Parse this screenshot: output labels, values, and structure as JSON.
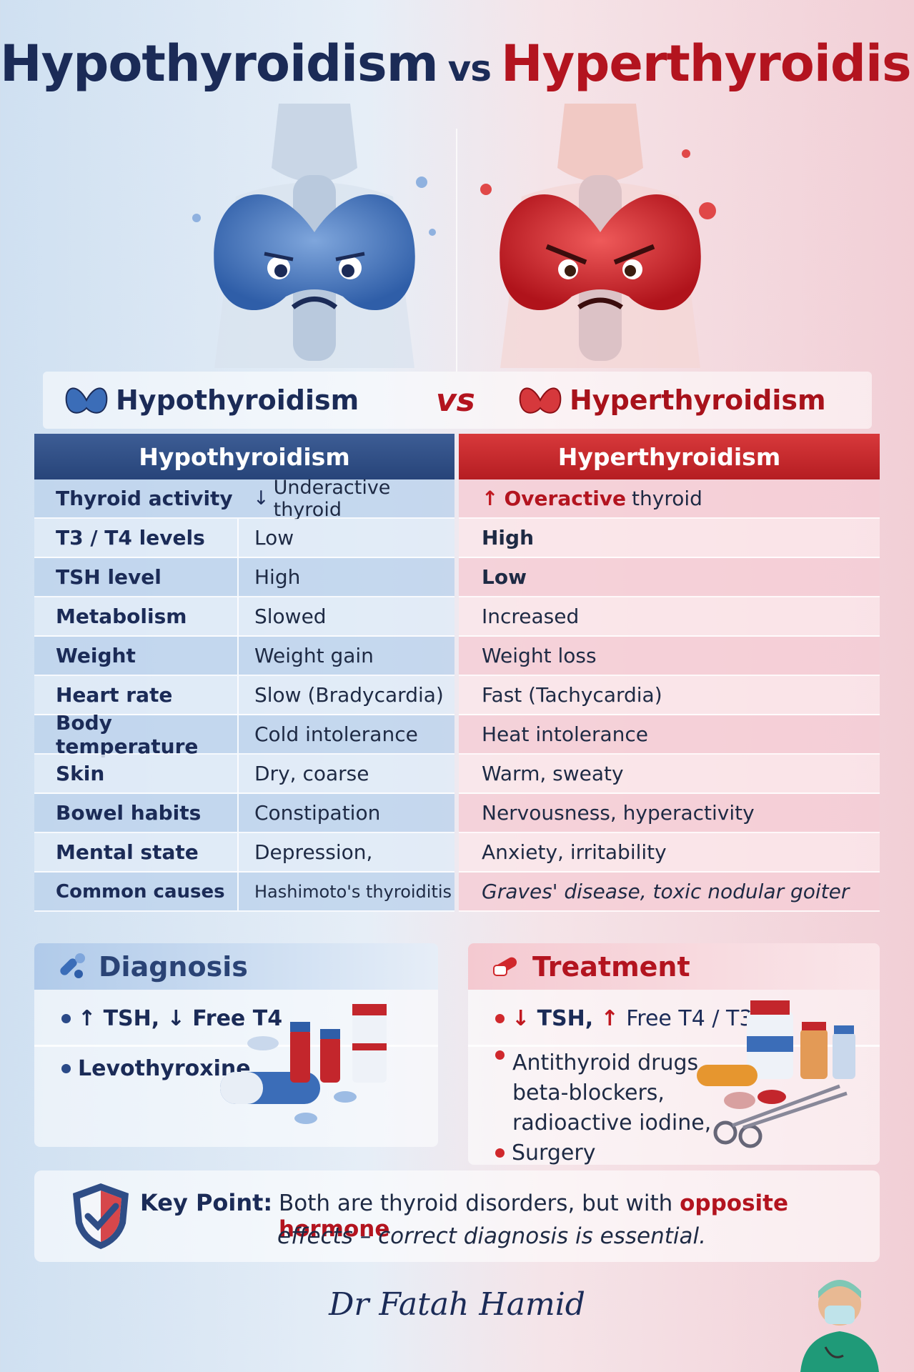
{
  "title": {
    "left": "Hypothyroidism",
    "vs": "vs",
    "right": "Hyperthyroidism"
  },
  "banner": {
    "left": "Hypothyroidism",
    "vs": "vs",
    "right": "Hyperthyroidism"
  },
  "table": {
    "headers": [
      "Hypothyroidism",
      "Hyperthyroidism"
    ],
    "rows": [
      {
        "label": "Thyroid activity",
        "hypo": "Underactive thyroid",
        "hyper_a": "Overactive",
        "hyper_b": "thyroid"
      },
      {
        "label": "T3 / T4 levels",
        "hypo": "Low",
        "hyper": "High"
      },
      {
        "label": "TSH level",
        "hypo": "High",
        "hyper": "Low"
      },
      {
        "label": "Metabolism",
        "hypo": "Slowed",
        "hyper": "Increased"
      },
      {
        "label": "Weight",
        "hypo": "Weight gain",
        "hyper": "Weight loss"
      },
      {
        "label": "Heart rate",
        "hypo": "Slow (Bradycardia)",
        "hyper": "Fast (Tachycardia)"
      },
      {
        "label": "Body temperature",
        "hypo": "Cold intolerance",
        "hyper": "Heat intolerance"
      },
      {
        "label": "Skin",
        "hypo": "Dry, coarse",
        "hyper": "Warm, sweaty"
      },
      {
        "label": "Bowel habits",
        "hypo": "Constipation",
        "hyper": "Nervousness, hyperactivity"
      },
      {
        "label": "Mental state",
        "hypo": "Depression,",
        "hyper": "Anxiety, irritability"
      },
      {
        "label": "Common causes",
        "hypo": "Hashimoto's thyroiditis",
        "hyper": "Graves' disease, toxic nodular goiter"
      }
    ]
  },
  "diagnosis": {
    "title": "Diagnosis",
    "line1_a": "TSH,",
    "line1_b": "Free T4",
    "line2": "Levothyroxine"
  },
  "treatment": {
    "title": "Treatment",
    "line1_a": "TSH,",
    "line1_b": "Free T4 / T3",
    "list": [
      "Antithyroid drugs,",
      "beta-blockers,",
      "radioactive iodine,"
    ],
    "last": "Surgery"
  },
  "key_point": {
    "label": "Key Point:",
    "text_a": "Both are thyroid disorders, but with",
    "text_hl": "opposite hormone",
    "text_b": "effects – correct diagnosis is essential."
  },
  "signature": "Dr Fatah Hamid",
  "colors": {
    "navy": "#1b2b57",
    "red": "#b3141f",
    "blue_header": "#2f4d86",
    "red_header": "#c42a2e"
  },
  "icons": [
    "thyroid-butterfly-icon",
    "pills-icon",
    "medicine-icon",
    "shield-check-icon",
    "doctor-avatar-icon"
  ]
}
